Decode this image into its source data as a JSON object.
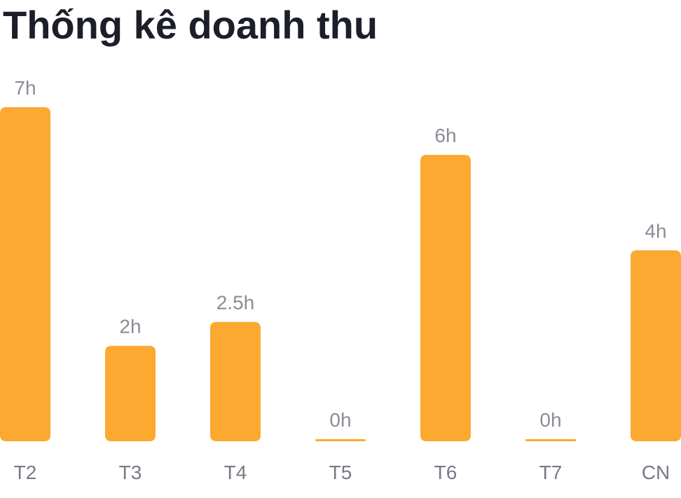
{
  "chart_data": {
    "type": "bar",
    "title": "Thống kê doanh thu",
    "categories": [
      "T2",
      "T3",
      "T4",
      "T5",
      "T6",
      "T7",
      "CN"
    ],
    "values": [
      7,
      2,
      2.5,
      0,
      6,
      0,
      4
    ],
    "data_labels": [
      "7h",
      "2h",
      "2.5h",
      "0h",
      "6h",
      "0h",
      "4h"
    ],
    "unit": "h",
    "xlabel": "",
    "ylabel": "",
    "ylim": [
      0,
      7
    ],
    "grid": false,
    "legend": "none",
    "bar_color": "#FBA931"
  }
}
